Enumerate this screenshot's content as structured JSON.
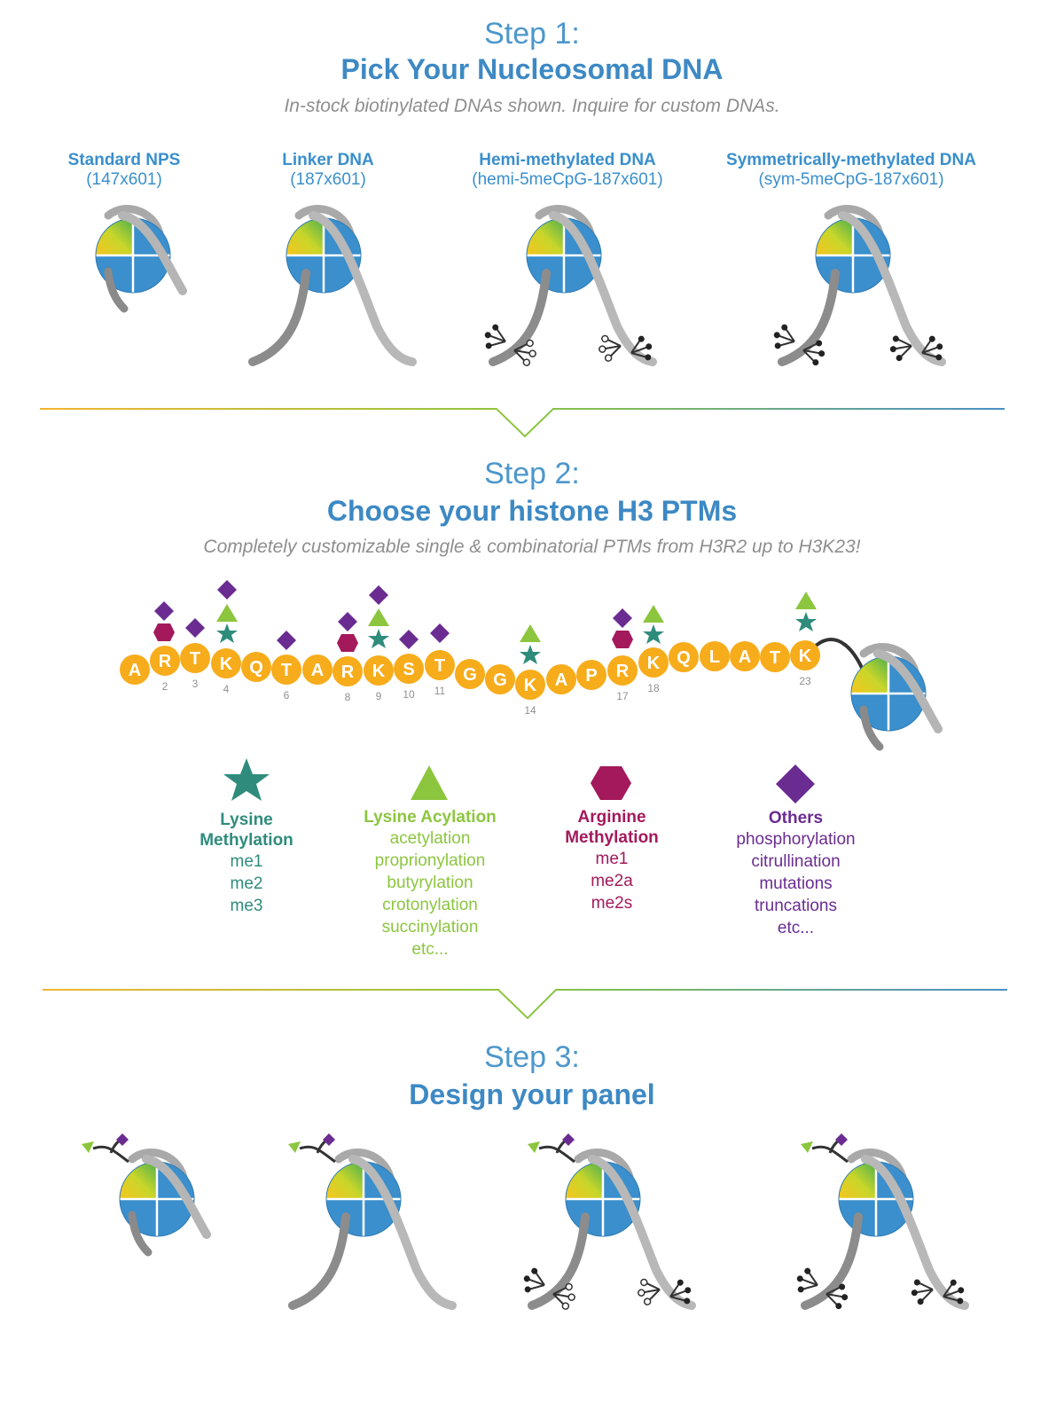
{
  "step1": {
    "step_label": "Step 1:",
    "title": "Pick Your Nucleosomal DNA",
    "subtitle": "In-stock biotinylated DNAs shown. Inquire for custom DNAs.",
    "options": [
      {
        "name": "Standard NPS",
        "code": "(147x601)"
      },
      {
        "name": "Linker DNA",
        "code": "(187x601)"
      },
      {
        "name": "Hemi-methylated DNA",
        "code": "(hemi-5meCpG-187x601)"
      },
      {
        "name": "Symmetrically-methylated DNA",
        "code": "(sym-5meCpG-187x601)"
      }
    ]
  },
  "step2": {
    "step_label": "Step 2:",
    "title": "Choose your histone H3 PTMs",
    "subtitle": "Completely customizable single & combinatorial PTMs from H3R2 up to H3K23!",
    "sequence": [
      "A",
      "R",
      "T",
      "K",
      "Q",
      "T",
      "A",
      "R",
      "K",
      "S",
      "T",
      "G",
      "G",
      "K",
      "A",
      "P",
      "R",
      "K",
      "Q",
      "L",
      "A",
      "T",
      "K"
    ],
    "position_labels": [
      "2",
      "3",
      "4",
      "6",
      "8",
      "9",
      "10",
      "11",
      "14",
      "17",
      "18",
      "23"
    ],
    "legend": {
      "lysine_methylation": {
        "title_line1": "Lysine",
        "title_line2": "Methylation",
        "items": [
          "me1",
          "me2",
          "me3"
        ],
        "color": "#2f8c7c"
      },
      "lysine_acylation": {
        "title": "Lysine Acylation",
        "items": [
          "acetylation",
          "proprionylation",
          "butyrylation",
          "crotonylation",
          "succinylation",
          "etc..."
        ],
        "color": "#8cc63f"
      },
      "arginine_methylation": {
        "title_line1": "Arginine",
        "title_line2": "Methylation",
        "items": [
          "me1",
          "me2a",
          "me2s"
        ],
        "color": "#a3195b"
      },
      "others": {
        "title": "Others",
        "items": [
          "phosphorylation",
          "citrullination",
          "mutations",
          "truncations",
          "etc..."
        ],
        "color": "#6a2c91"
      }
    }
  },
  "step3": {
    "step_label": "Step 3:",
    "title": "Design your panel"
  },
  "colors": {
    "heading_blue": "#3d89c4",
    "residue_orange": "#f7ac1b",
    "histone_blue": "#3a8fcc",
    "dna_gray": "#9a9a9a",
    "divider_start": "#f3b530",
    "divider_mid": "#8cc63f",
    "divider_end": "#4a90c8"
  }
}
